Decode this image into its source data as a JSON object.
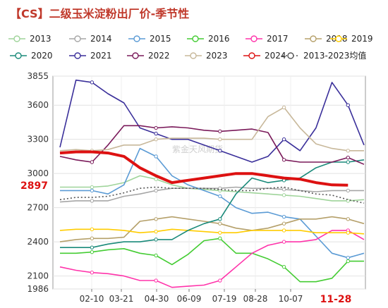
{
  "chart_data": {
    "type": "line",
    "title": "【CS】二级玉米淀粉出厂价-季节性",
    "watermark": "紫金天风期货",
    "ylim": [
      1986,
      3855
    ],
    "yticks": [
      1986,
      2100,
      2400,
      2700,
      3000,
      3300,
      3600,
      3855
    ],
    "x_ticks": [
      "02-10",
      "03-21",
      "04-30",
      "06-09",
      "07-19",
      "08-28",
      "10-07"
    ],
    "highlight_x": "11-28",
    "highlight_y": "2897",
    "grid": true,
    "legend_position": "top",
    "series": [
      {
        "name": "2013",
        "color": "#9fd49a",
        "dash": "",
        "values": [
          2880,
          2880,
          2880,
          2890,
          2920,
          2980,
          2950,
          2900,
          2870,
          2860,
          2850,
          2840,
          2830,
          2820,
          2810,
          2800,
          2780,
          2760,
          2760,
          2770
        ]
      },
      {
        "name": "2014",
        "color": "#a6a6a6",
        "dash": "",
        "values": [
          2750,
          2760,
          2760,
          2760,
          2800,
          2820,
          2850,
          2870,
          2870,
          2870,
          2870,
          2880,
          2870,
          2870,
          2860,
          2850,
          2840,
          2850,
          2850,
          2850
        ]
      },
      {
        "name": "2015",
        "color": "#5b9bd5",
        "dash": "",
        "values": [
          2850,
          2850,
          2850,
          2820,
          2900,
          3220,
          3150,
          2980,
          2900,
          2850,
          2800,
          2700,
          2650,
          2660,
          2620,
          2600,
          2450,
          2300,
          2260,
          2300
        ]
      },
      {
        "name": "2016",
        "color": "#44cc33",
        "dash": "",
        "values": [
          2300,
          2300,
          2310,
          2330,
          2340,
          2300,
          2280,
          2200,
          2290,
          2410,
          2430,
          2300,
          2300,
          2250,
          2180,
          2050,
          2050,
          2080,
          2230,
          2230
        ]
      },
      {
        "name": "2017",
        "color": "#ff33aa",
        "dash": "",
        "values": [
          2180,
          2150,
          2130,
          2120,
          2100,
          2060,
          2060,
          2000,
          2010,
          2020,
          2060,
          2180,
          2300,
          2370,
          2400,
          2400,
          2420,
          2500,
          2500,
          2420
        ]
      },
      {
        "name": "2018",
        "color": "#b5a06a",
        "dash": "",
        "values": [
          2400,
          2420,
          2430,
          2430,
          2440,
          2580,
          2600,
          2620,
          2600,
          2580,
          2560,
          2520,
          2500,
          2520,
          2560,
          2600,
          2600,
          2620,
          2600,
          2560
        ]
      },
      {
        "name": "2019",
        "color": "#ffcc00",
        "dash": "",
        "values": [
          2500,
          2510,
          2510,
          2510,
          2500,
          2480,
          2490,
          2510,
          2500,
          2490,
          2480,
          2480,
          2500,
          2500,
          2500,
          2500,
          2480,
          2480,
          2480,
          2470
        ]
      },
      {
        "name": "2020",
        "color": "#1a8a7a",
        "dash": "",
        "values": [
          2350,
          2350,
          2350,
          2380,
          2400,
          2400,
          2420,
          2420,
          2500,
          2560,
          2600,
          2820,
          2960,
          2920,
          2940,
          2960,
          3050,
          3100,
          3100,
          3120
        ]
      },
      {
        "name": "2021",
        "color": "#3a2f9a",
        "dash": "",
        "values": [
          3230,
          3820,
          3800,
          3700,
          3620,
          3400,
          3350,
          3300,
          3300,
          3250,
          3200,
          3150,
          3100,
          3150,
          3300,
          3200,
          3400,
          3800,
          3600,
          3250
        ]
      },
      {
        "name": "2022",
        "color": "#7a1a5a",
        "dash": "",
        "values": [
          3150,
          3120,
          3100,
          3250,
          3420,
          3420,
          3400,
          3410,
          3400,
          3380,
          3370,
          3380,
          3390,
          3360,
          3120,
          3100,
          3100,
          3100,
          3140,
          3080
        ]
      },
      {
        "name": "2023",
        "color": "#c8b89a",
        "dash": "",
        "values": [
          3200,
          3210,
          3200,
          3210,
          3250,
          3250,
          3300,
          3310,
          3310,
          3310,
          3300,
          3300,
          3300,
          3500,
          3580,
          3400,
          3260,
          3220,
          3200,
          3200
        ]
      },
      {
        "name": "2024",
        "color": "#dd1111",
        "dash": "",
        "width": 4,
        "values": [
          3180,
          3190,
          3190,
          3180,
          3150,
          3050,
          2980,
          2920,
          2940,
          2960,
          2980,
          3000,
          3000,
          2980,
          2960,
          2950,
          2920,
          2900,
          2897
        ]
      },
      {
        "name": "2013-2023均值",
        "color": "#555555",
        "dash": "2,3",
        "values": [
          2770,
          2790,
          2790,
          2800,
          2830,
          2870,
          2880,
          2870,
          2870,
          2870,
          2860,
          2850,
          2850,
          2870,
          2880,
          2850,
          2820,
          2810,
          2770,
          2740
        ]
      }
    ]
  }
}
